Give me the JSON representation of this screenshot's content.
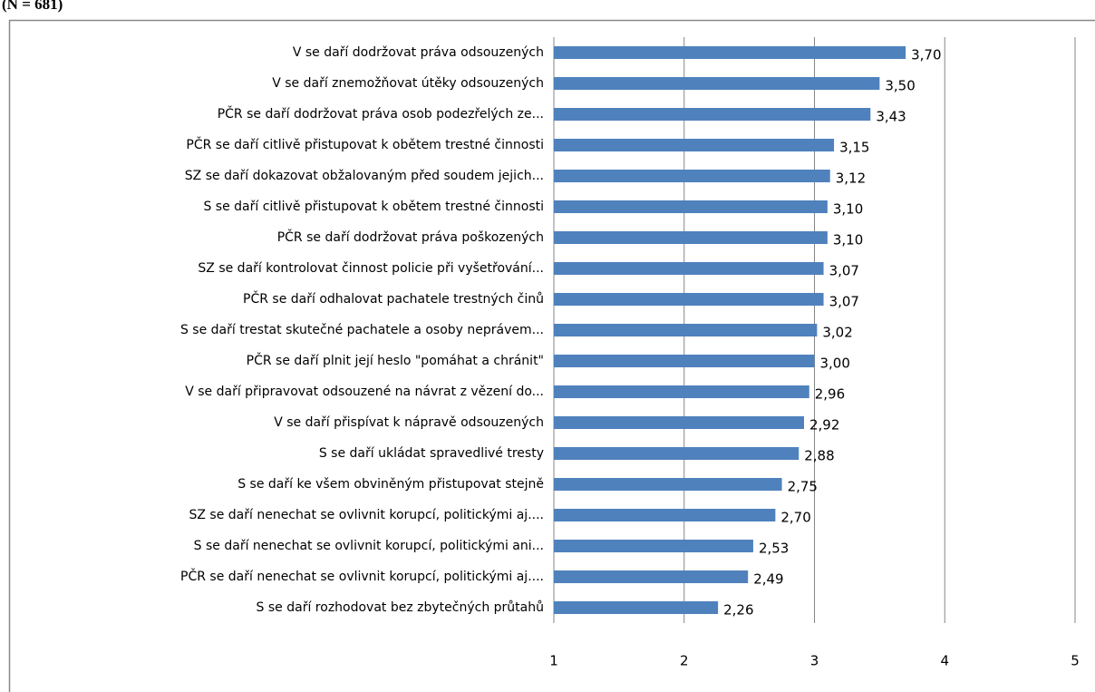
{
  "chart_data": {
    "type": "bar",
    "orientation": "horizontal",
    "title": "(N = 681)",
    "categories": [
      "V  se daří dodržovat práva odsouzených",
      "V  se daří znemožňovat útěky odsouzených",
      "PČR  se daří dodržovat práva osob podezřelých ze...",
      "PČR se daří citlivě přistupovat k obětem trestné činnosti",
      "SZ  se daří dokazovat obžalovaným před soudem jejich...",
      "S se daří citlivě přistupovat k obětem trestné činnosti",
      "PČR se daří dodržovat práva poškozených",
      "SZ  se daří kontrolovat činnost policie  při vyšetřování...",
      "PČR se daří odhalovat pachatele trestných činů",
      "S se daří trestat skutečné pachatele a osoby neprávem...",
      "PČR se daří plnit její heslo \"pomáhat a chránit\"",
      "V se daří připravovat odsouzené na návrat z vězení do...",
      "V se daří přispívat k nápravě odsouzených",
      "S se daří ukládat spravedlivé tresty",
      "S se daří ke všem obviněným přistupovat stejně",
      "SZ se daří nenechat se ovlivnit korupcí, politickými aj....",
      "S se daří nenechat se ovlivnit korupcí, politickými ani...",
      "PČR se daří nenechat se ovlivnit korupcí, politickými aj....",
      "S se daří rozhodovat bez zbytečných průtahů"
    ],
    "values": [
      3.7,
      3.5,
      3.43,
      3.15,
      3.12,
      3.1,
      3.1,
      3.07,
      3.07,
      3.02,
      3.0,
      2.96,
      2.92,
      2.88,
      2.75,
      2.7,
      2.53,
      2.49,
      2.26
    ],
    "value_labels": [
      "3,70",
      "3,50",
      "3,43",
      "3,15",
      "3,12",
      "3,10",
      "3,10",
      "3,07",
      "3,07",
      "3,02",
      "3,00",
      "2,96",
      "2,92",
      "2,88",
      "2,75",
      "2,70",
      "2,53",
      "2,49",
      "2,26"
    ],
    "color": "#4f81bd",
    "xlim": [
      1,
      5
    ],
    "xticks": [
      1,
      2,
      3,
      4,
      5
    ],
    "grid": true
  }
}
